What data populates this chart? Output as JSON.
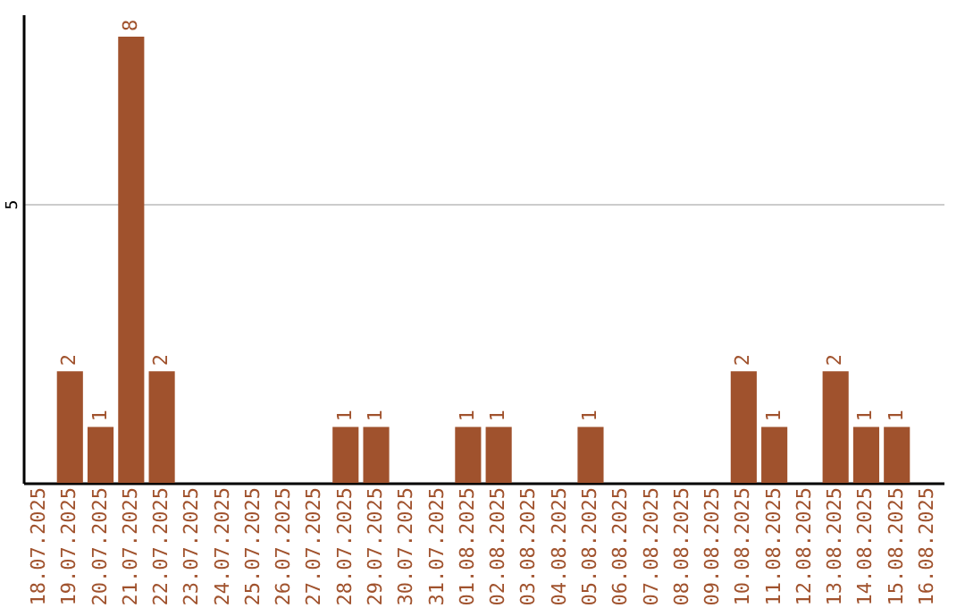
{
  "chart_data": {
    "type": "bar",
    "categories": [
      "18.07.2025",
      "19.07.2025",
      "20.07.2025",
      "21.07.2025",
      "22.07.2025",
      "23.07.2025",
      "24.07.2025",
      "25.07.2025",
      "26.07.2025",
      "27.07.2025",
      "28.07.2025",
      "29.07.2025",
      "30.07.2025",
      "31.07.2025",
      "01.08.2025",
      "02.08.2025",
      "03.08.2025",
      "04.08.2025",
      "05.08.2025",
      "06.08.2025",
      "07.08.2025",
      "08.08.2025",
      "09.08.2025",
      "10.08.2025",
      "11.08.2025",
      "12.08.2025",
      "13.08.2025",
      "14.08.2025",
      "15.08.2025",
      "16.08.2025"
    ],
    "values": [
      0,
      2,
      1,
      8,
      2,
      0,
      0,
      0,
      0,
      0,
      1,
      1,
      0,
      0,
      1,
      1,
      0,
      0,
      1,
      0,
      0,
      0,
      0,
      2,
      1,
      0,
      2,
      1,
      1,
      0
    ],
    "value_labels": [
      null,
      "2",
      "1",
      "8",
      "2",
      null,
      null,
      null,
      null,
      null,
      "1",
      "1",
      null,
      null,
      "1",
      "1",
      null,
      null,
      "1",
      null,
      null,
      null,
      null,
      "2",
      "1",
      null,
      "2",
      "1",
      "1",
      null
    ],
    "color": "#a0522d",
    "ylim": [
      0,
      8.4
    ],
    "yticks": [
      5
    ],
    "grid": "y"
  }
}
